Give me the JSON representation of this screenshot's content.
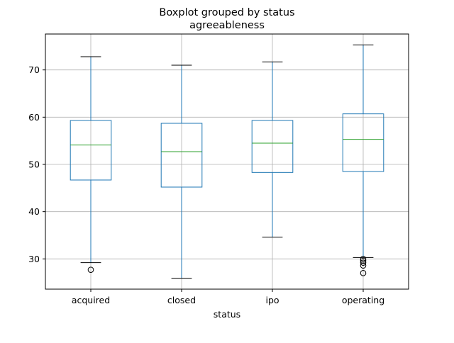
{
  "chart_data": {
    "type": "boxplot",
    "title": "Boxplot grouped by status",
    "subtitle": "agreeableness",
    "xlabel": "status",
    "ylabel": "",
    "categories": [
      "acquired",
      "closed",
      "ipo",
      "operating"
    ],
    "ylim": [
      23.6,
      77.6
    ],
    "yticks": [
      30,
      40,
      50,
      60,
      70
    ],
    "grid": true,
    "colors": {
      "box": "#1f77b4",
      "median": "#2ca02c",
      "whisker_cap": "#000000",
      "grid": "#b0b0b0"
    },
    "boxes": [
      {
        "category": "acquired",
        "whisker_low": 29.2,
        "q1": 46.7,
        "median": 54.1,
        "q3": 59.3,
        "whisker_high": 72.8,
        "outliers": [
          27.7
        ]
      },
      {
        "category": "closed",
        "whisker_low": 25.9,
        "q1": 45.2,
        "median": 52.7,
        "q3": 58.7,
        "whisker_high": 71.0,
        "outliers": []
      },
      {
        "category": "ipo",
        "whisker_low": 34.6,
        "q1": 48.3,
        "median": 54.5,
        "q3": 59.3,
        "whisker_high": 71.7,
        "outliers": []
      },
      {
        "category": "operating",
        "whisker_low": 30.3,
        "q1": 48.5,
        "median": 55.3,
        "q3": 60.7,
        "whisker_high": 75.3,
        "outliers": [
          30.0,
          29.6,
          29.2,
          28.6,
          27.0
        ]
      }
    ]
  }
}
